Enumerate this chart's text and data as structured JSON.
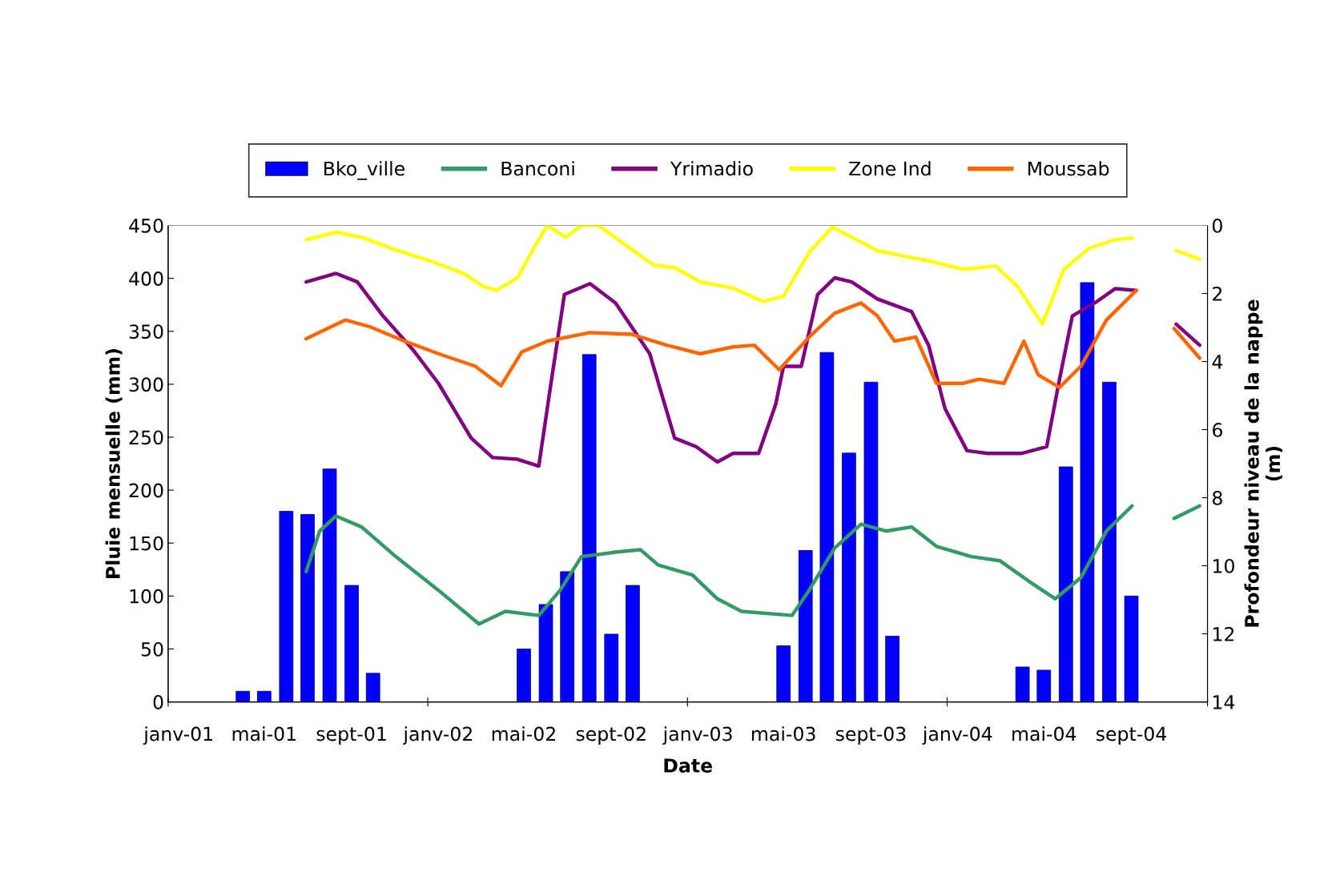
{
  "chart_data": {
    "type": "bar",
    "xlabel": "Date",
    "ylabel": "Pluie mensuelle (mm)",
    "y2label": "Profondeur niveau de la nappe\n(m)",
    "xlim": [
      "2001-01-01",
      "2005-01-01"
    ],
    "xticks": [
      {
        "value": "2001-01-01",
        "label": null
      },
      {
        "value": "2002-01-01",
        "label": null
      },
      {
        "value": "2003-01-01",
        "label": null
      },
      {
        "value": "2004-01-01",
        "label": null
      },
      {
        "value": "2005-01-01",
        "label": null
      },
      {
        "value": "2001-01-16",
        "label": "janv-01"
      },
      {
        "value": "2001-05-16",
        "label": "mai-01"
      },
      {
        "value": "2001-09-16",
        "label": "sept-01"
      },
      {
        "value": "2002-01-16",
        "label": "janv-02"
      },
      {
        "value": "2002-05-16",
        "label": "mai-02"
      },
      {
        "value": "2002-09-16",
        "label": "sept-02"
      },
      {
        "value": "2003-01-16",
        "label": "janv-03"
      },
      {
        "value": "2003-05-16",
        "label": "mai-03"
      },
      {
        "value": "2003-09-16",
        "label": "sept-03"
      },
      {
        "value": "2004-01-16",
        "label": "janv-04"
      },
      {
        "value": "2004-05-16",
        "label": "mai-04"
      },
      {
        "value": "2004-09-16",
        "label": "sept-04"
      }
    ],
    "ylim": [
      0,
      450
    ],
    "yticks": [
      0,
      50,
      100,
      150,
      200,
      250,
      300,
      350,
      400,
      450
    ],
    "y2lim": [
      14,
      0
    ],
    "y2ticks": [
      0,
      2,
      4,
      6,
      8,
      10,
      12,
      14
    ],
    "grid": false,
    "legend": "top",
    "series": [
      {
        "name": "Bko_ville",
        "color": "#0000ff",
        "x": [
          "2001-04-16",
          "2001-05-16",
          "2001-06-16",
          "2001-07-16",
          "2001-08-16",
          "2001-09-16",
          "2001-10-16",
          "2002-05-16",
          "2002-06-16",
          "2002-07-16",
          "2002-08-16",
          "2002-09-16",
          "2002-10-16",
          "2003-05-16",
          "2003-06-16",
          "2003-07-16",
          "2003-08-16",
          "2003-09-16",
          "2003-10-16",
          "2004-04-16",
          "2004-05-16",
          "2004-06-16",
          "2004-07-16",
          "2004-08-16",
          "2004-09-16"
        ],
        "values": [
          10,
          10,
          180,
          177,
          220,
          110,
          27,
          50,
          92,
          123,
          328,
          64,
          110,
          53,
          143,
          330,
          235,
          302,
          62,
          33,
          30,
          222,
          396,
          302,
          100
        ]
      },
      {
        "name": "Banconi",
        "type": "line",
        "axis": "y2",
        "color": "#339966",
        "x": [
          "2001-07-14",
          "2001-08-02",
          "2001-08-25",
          "2001-09-30",
          "2001-11-17",
          "2002-01-16",
          "2002-03-14",
          "2002-04-20",
          "2002-06-06",
          "2002-07-06",
          "2002-08-05",
          "2002-09-22",
          "2002-10-27",
          "2002-11-21",
          "2003-01-08",
          "2003-02-12",
          "2003-03-18",
          "2003-05-28",
          "2003-06-21",
          "2003-07-27",
          "2003-09-02",
          "2003-10-07",
          "2003-11-12",
          "2003-12-17",
          "2004-02-04",
          "2004-03-15",
          "2004-04-26",
          "2004-06-01",
          "2004-07-07",
          "2004-08-12",
          "2004-09-17",
          "2004-10-15",
          "2004-11-15",
          "2004-12-21"
        ],
        "values": [
          10.17,
          8.98,
          8.54,
          8.86,
          9.73,
          10.72,
          11.71,
          11.34,
          11.46,
          10.72,
          9.73,
          9.6,
          9.53,
          9.98,
          10.27,
          10.97,
          11.34,
          11.46,
          10.72,
          9.48,
          8.78,
          8.98,
          8.86,
          9.43,
          9.73,
          9.85,
          10.47,
          10.97,
          10.35,
          8.98,
          8.24,
          null,
          8.61,
          8.24
        ]
      },
      {
        "name": "Yrimadio",
        "type": "line",
        "axis": "y2",
        "color": "#800080",
        "x": [
          "2001-07-14",
          "2001-08-25",
          "2001-09-24",
          "2001-10-30",
          "2001-12-11",
          "2002-01-16",
          "2002-03-03",
          "2002-04-02",
          "2002-05-07",
          "2002-06-06",
          "2002-06-24",
          "2002-07-12",
          "2002-08-17",
          "2002-09-22",
          "2002-11-09",
          "2002-12-14",
          "2003-01-13",
          "2003-02-12",
          "2003-03-06",
          "2003-04-11",
          "2003-05-05",
          "2003-05-16",
          "2003-06-10",
          "2003-07-03",
          "2003-07-27",
          "2003-08-20",
          "2003-09-25",
          "2003-11-12",
          "2003-12-06",
          "2003-12-29",
          "2004-01-29",
          "2004-02-27",
          "2004-04-14",
          "2004-05-20",
          "2004-06-07",
          "2004-06-25",
          "2004-07-30",
          "2004-08-24",
          "2004-09-23",
          "2004-10-15",
          "2004-11-18",
          "2004-12-21"
        ],
        "values": [
          1.66,
          1.41,
          1.66,
          2.66,
          3.65,
          4.64,
          6.25,
          6.82,
          6.87,
          7.07,
          4.52,
          2.03,
          1.71,
          2.28,
          3.77,
          6.25,
          6.5,
          6.95,
          6.7,
          6.7,
          5.26,
          4.14,
          4.14,
          2.03,
          1.54,
          1.66,
          2.16,
          2.53,
          3.52,
          5.38,
          6.62,
          6.7,
          6.7,
          6.5,
          4.52,
          2.66,
          2.23,
          1.86,
          1.91,
          null,
          2.9,
          3.52
        ]
      },
      {
        "name": "Zone Ind",
        "type": "line",
        "axis": "y2",
        "color": "#ffff00",
        "x": [
          "2001-07-14",
          "2001-08-25",
          "2001-09-30",
          "2001-11-17",
          "2002-01-04",
          "2002-02-20",
          "2002-03-20",
          "2002-04-08",
          "2002-05-07",
          "2002-05-30",
          "2002-06-18",
          "2002-07-14",
          "2002-08-05",
          "2002-08-29",
          "2002-10-04",
          "2002-11-15",
          "2002-12-14",
          "2003-01-19",
          "2003-03-06",
          "2003-04-17",
          "2003-05-16",
          "2003-06-21",
          "2003-07-24",
          "2003-08-20",
          "2003-09-25",
          "2003-10-30",
          "2003-12-06",
          "2004-01-23",
          "2004-03-09",
          "2004-04-09",
          "2004-05-14",
          "2004-06-13",
          "2004-07-19",
          "2004-08-24",
          "2004-09-17",
          "2004-10-15",
          "2004-11-18",
          "2004-12-21"
        ],
        "values": [
          0.42,
          0.2,
          0.35,
          0.72,
          1.04,
          1.41,
          1.79,
          1.91,
          1.54,
          0.67,
          0,
          0.35,
          0,
          0,
          0.55,
          1.17,
          1.24,
          1.66,
          1.84,
          2.23,
          2.08,
          0.79,
          0.05,
          0.35,
          0.74,
          0.89,
          1.04,
          1.29,
          1.19,
          1.79,
          2.9,
          1.29,
          0.67,
          0.42,
          0.37,
          null,
          0.74,
          0.99
        ]
      },
      {
        "name": "Moussab",
        "type": "line",
        "axis": "y2",
        "color": "#ff6600",
        "x": [
          "2001-07-14",
          "2001-09-07",
          "2001-10-12",
          "2001-11-29",
          "2002-01-16",
          "2002-03-09",
          "2002-04-14",
          "2002-05-13",
          "2002-06-18",
          "2002-08-17",
          "2002-10-15",
          "2002-12-03",
          "2003-01-19",
          "2003-03-06",
          "2003-04-05",
          "2003-05-10",
          "2003-06-21",
          "2003-07-27",
          "2003-09-02",
          "2003-09-25",
          "2003-10-19",
          "2003-11-18",
          "2003-12-17",
          "2004-01-23",
          "2004-02-15",
          "2004-03-21",
          "2004-04-18",
          "2004-05-08",
          "2004-06-07",
          "2004-07-07",
          "2004-08-12",
          "2004-09-23",
          "2004-10-15",
          "2004-11-15",
          "2004-12-21"
        ],
        "values": [
          3.33,
          2.78,
          2.98,
          3.4,
          3.77,
          4.14,
          4.71,
          3.72,
          3.4,
          3.15,
          3.2,
          3.52,
          3.77,
          3.57,
          3.52,
          4.24,
          3.28,
          2.58,
          2.28,
          2.66,
          3.4,
          3.28,
          4.64,
          4.64,
          4.52,
          4.64,
          3.4,
          4.39,
          4.76,
          4.14,
          2.78,
          1.91,
          null,
          3.03,
          3.9
        ]
      }
    ]
  }
}
